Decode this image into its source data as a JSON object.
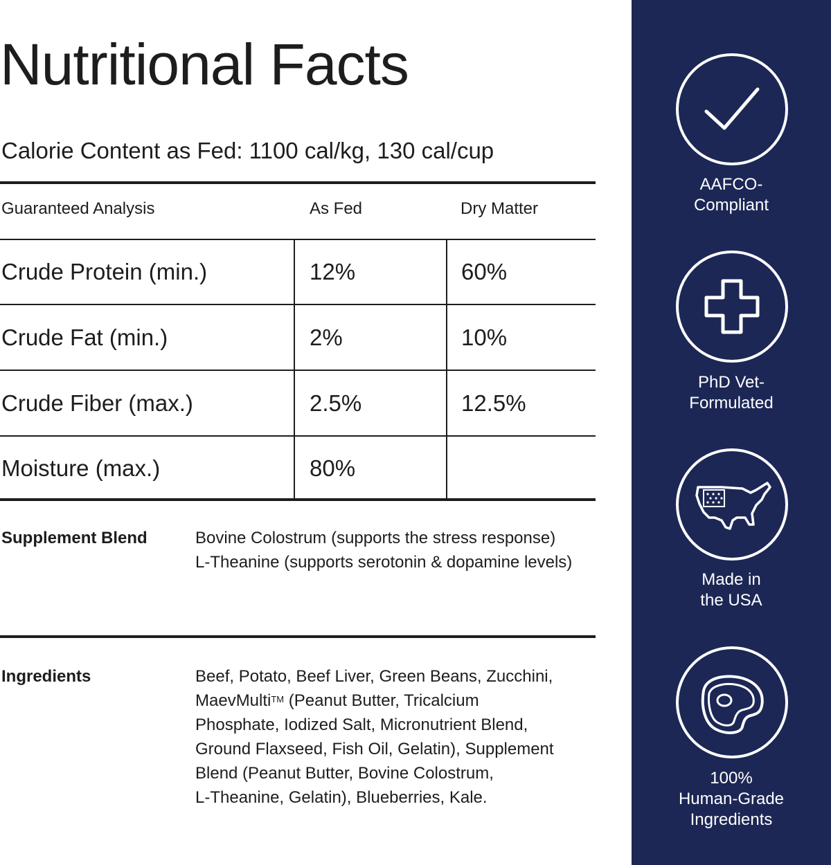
{
  "title": "Nutritional Facts",
  "calorie_content": "Calorie Content as Fed: 1100 cal/kg, 130 cal/cup",
  "analysis": {
    "headers": [
      "Guaranteed Analysis",
      "As Fed",
      "Dry Matter"
    ],
    "rows": [
      {
        "name": "Crude Protein (min.)",
        "as_fed": "12%",
        "dry_matter": "60%"
      },
      {
        "name": "Crude Fat (min.)",
        "as_fed": "2%",
        "dry_matter": "10%"
      },
      {
        "name": "Crude Fiber (max.)",
        "as_fed": "2.5%",
        "dry_matter": "12.5%"
      },
      {
        "name": "Moisture (max.)",
        "as_fed": "80%",
        "dry_matter": ""
      }
    ]
  },
  "supplement_blend": {
    "label": "Supplement Blend",
    "lines": [
      "Bovine Colostrum (supports the stress response)",
      "L-Theanine (supports serotonin & dopamine levels)"
    ]
  },
  "ingredients": {
    "label": "Ingredients",
    "line1": "Beef, Potato, Beef Liver, Green Beans, Zucchini,",
    "line2_prefix": "MaevMulti",
    "line2_sup": "TM",
    "line2_suffix": " (Peanut Butter, Tricalcium",
    "line3": "Phosphate, Iodized Salt, Micronutrient Blend,",
    "line4": "Ground Flaxseed, Fish Oil, Gelatin), Supplement",
    "line5": "Blend (Peanut Butter, Bovine Colostrum,",
    "line6": "L-Theanine, Gelatin), Blueberries, Kale."
  },
  "sidebar": {
    "background": "#1c2755",
    "badges": [
      {
        "icon": "checkmark-icon",
        "label_lines": [
          "AAFCO-",
          "Compliant"
        ]
      },
      {
        "icon": "medical-cross-icon",
        "label_lines": [
          "PhD Vet-",
          "Formulated"
        ]
      },
      {
        "icon": "usa-map-icon",
        "label_lines": [
          "Made in",
          "the USA"
        ]
      },
      {
        "icon": "steak-icon",
        "label_lines": [
          "100%",
          "Human-Grade",
          "Ingredients"
        ]
      }
    ]
  }
}
